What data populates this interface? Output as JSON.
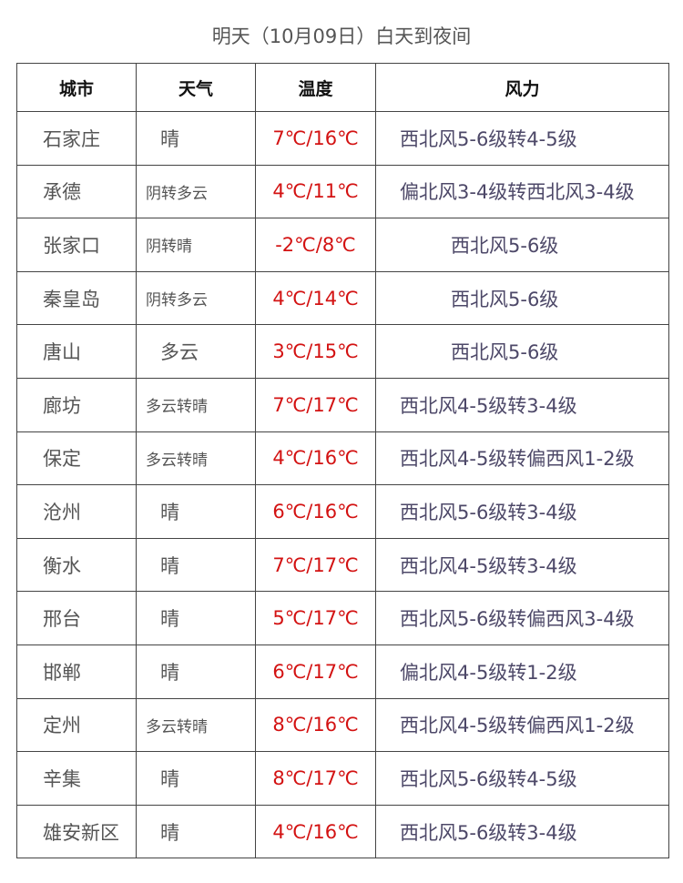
{
  "title": "明天（10月09日）白天到夜间",
  "headers": [
    "城市",
    "天气",
    "温度",
    "风力"
  ],
  "colors": {
    "temperature": "#d31212",
    "text": "#555555",
    "wind": "#4d4868"
  },
  "rows": [
    {
      "city": "石家庄",
      "weather": "晴",
      "temp": "7℃/16℃",
      "wind": "西北风5-6级转4-5级"
    },
    {
      "city": "承德",
      "weather": "阴转多云",
      "temp": "4℃/11℃",
      "wind": "偏北风3-4级转西北风3-4级"
    },
    {
      "city": "张家口",
      "weather": "阴转晴",
      "temp": "-2℃/8℃",
      "wind": "西北风5-6级"
    },
    {
      "city": "秦皇岛",
      "weather": "阴转多云",
      "temp": "4℃/14℃",
      "wind": "西北风5-6级"
    },
    {
      "city": "唐山",
      "weather": "多云",
      "temp": "3℃/15℃",
      "wind": "西北风5-6级"
    },
    {
      "city": "廊坊",
      "weather": "多云转晴",
      "temp": "7℃/17℃",
      "wind": "西北风4-5级转3-4级"
    },
    {
      "city": "保定",
      "weather": "多云转晴",
      "temp": "4℃/16℃",
      "wind": "西北风4-5级转偏西风1-2级"
    },
    {
      "city": "沧州",
      "weather": "晴",
      "temp": "6℃/16℃",
      "wind": "西北风5-6级转3-4级"
    },
    {
      "city": "衡水",
      "weather": "晴",
      "temp": "7℃/17℃",
      "wind": "西北风4-5级转3-4级"
    },
    {
      "city": "邢台",
      "weather": "晴",
      "temp": "5℃/17℃",
      "wind": "西北风5-6级转偏西风3-4级"
    },
    {
      "city": "邯郸",
      "weather": "晴",
      "temp": "6℃/17℃",
      "wind": "偏北风4-5级转1-2级"
    },
    {
      "city": "定州",
      "weather": "多云转晴",
      "temp": "8℃/16℃",
      "wind": "西北风4-5级转偏西风1-2级"
    },
    {
      "city": "辛集",
      "weather": "晴",
      "temp": "8℃/17℃",
      "wind": "西北风5-6级转4-5级"
    },
    {
      "city": "雄安新区",
      "weather": "晴",
      "temp": "4℃/16℃",
      "wind": "西北风5-6级转3-4级"
    }
  ]
}
